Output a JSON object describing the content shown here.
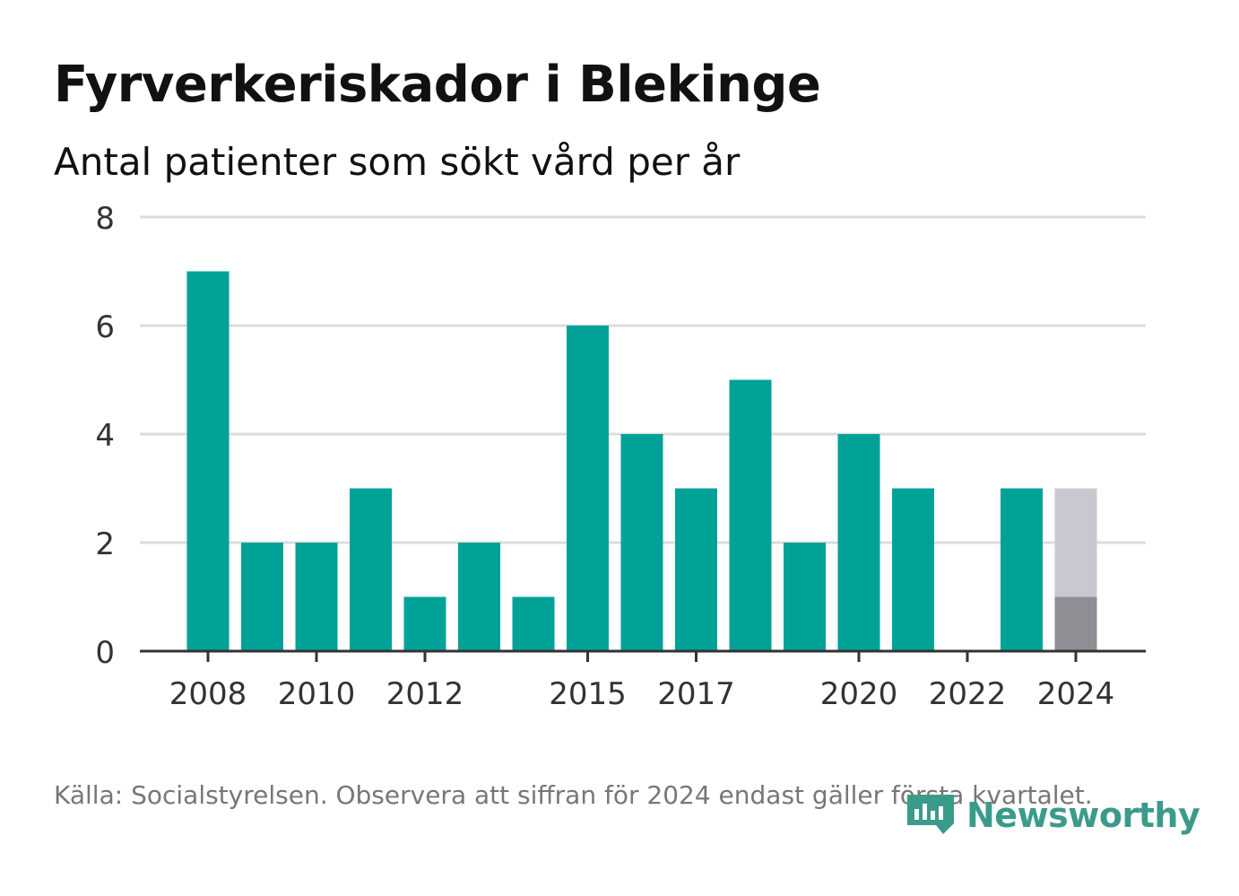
{
  "title": "Fyrverkeriskador i Blekinge",
  "subtitle": "Antal patienter som sökt vård per år",
  "footer": "Källa: Socialstyrelsen. Observera att siffran för 2024 endast gäller första kvartalet.",
  "brand": {
    "name": "Newsworthy",
    "icon": "newsworthy-logo-icon",
    "color": "#3b9b8b"
  },
  "colors": {
    "bar": "#00a298",
    "ghost": "#c8c8d0",
    "partial": "#8e8e94",
    "grid": "#dcdcdc",
    "axis": "#333333"
  },
  "chart_data": {
    "type": "bar",
    "x": [
      2008,
      2009,
      2010,
      2011,
      2012,
      2013,
      2014,
      2015,
      2016,
      2017,
      2018,
      2019,
      2020,
      2021,
      2022,
      2023,
      2024
    ],
    "values": [
      7,
      2,
      2,
      3,
      1,
      2,
      1,
      6,
      4,
      3,
      5,
      2,
      4,
      3,
      0,
      3,
      1
    ],
    "partial_year": {
      "year": 2024,
      "value": 1,
      "comparison_value": 3
    },
    "x_tick_labels": [
      "2008",
      "2010",
      "2012",
      "2015",
      "2017",
      "2020",
      "2022",
      "2024"
    ],
    "y_ticks": [
      0,
      2,
      4,
      6,
      8
    ],
    "ylim": [
      0,
      8
    ],
    "grid": true,
    "xlabel": "",
    "ylabel": ""
  }
}
